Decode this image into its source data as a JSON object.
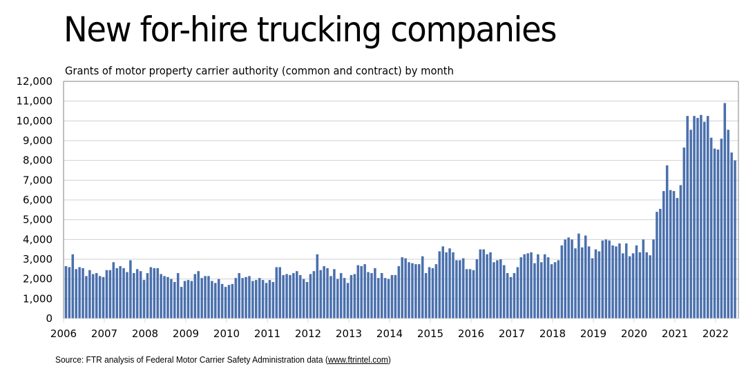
{
  "title": "New for-hire trucking companies",
  "source": {
    "prefix": "Source: FTR analysis of Federal Motor Carrier Safety Administration data (",
    "link": "www.ftrintel.com",
    "suffix": ")"
  },
  "colors": {
    "bar": "#4a70ad",
    "grid": "#d0d0d0",
    "axis": "#808080"
  },
  "chart_data": {
    "type": "bar",
    "title": "New for-hire trucking companies",
    "subtitle": "Grants of motor property carrier authority (common and contract) by month",
    "xlabel": "",
    "ylabel": "",
    "ylim": [
      0,
      12000
    ],
    "yticks": [
      0,
      1000,
      2000,
      3000,
      4000,
      5000,
      6000,
      7000,
      8000,
      9000,
      10000,
      11000,
      12000
    ],
    "ytick_labels": [
      "0",
      "1,000",
      "2,000",
      "3,000",
      "4,000",
      "5,000",
      "6,000",
      "7,000",
      "8,000",
      "9,000",
      "10,000",
      "11,000",
      "12,000"
    ],
    "xtick_labels": [
      "2006",
      "2007",
      "2008",
      "2009",
      "2010",
      "2011",
      "2012",
      "2013",
      "2014",
      "2015",
      "2016",
      "2017",
      "2018",
      "2019",
      "2020",
      "2021",
      "2022"
    ],
    "grid": true,
    "legend": "none",
    "start": "2006-01",
    "frequency": "monthly",
    "series": [
      {
        "name": "Grants of authority",
        "values": [
          2650,
          2600,
          3250,
          2500,
          2600,
          2550,
          2150,
          2450,
          2250,
          2300,
          2150,
          2100,
          2450,
          2450,
          2850,
          2550,
          2650,
          2550,
          2350,
          2950,
          2300,
          2500,
          2400,
          1950,
          2300,
          2600,
          2550,
          2550,
          2250,
          2150,
          2100,
          2000,
          1850,
          2300,
          1600,
          1900,
          1950,
          1900,
          2250,
          2400,
          2050,
          2150,
          2150,
          1900,
          1800,
          2000,
          1750,
          1600,
          1700,
          1750,
          2050,
          2300,
          2050,
          2100,
          2150,
          1900,
          1950,
          2050,
          1950,
          1800,
          1950,
          1850,
          2600,
          2600,
          2200,
          2250,
          2200,
          2300,
          2400,
          2200,
          2000,
          1850,
          2250,
          2400,
          3250,
          2450,
          2650,
          2550,
          2150,
          2500,
          2000,
          2300,
          2050,
          1800,
          2200,
          2250,
          2700,
          2650,
          2750,
          2350,
          2300,
          2550,
          2050,
          2300,
          2050,
          2000,
          2200,
          2200,
          2650,
          3100,
          3050,
          2850,
          2800,
          2750,
          2750,
          3150,
          2300,
          2600,
          2550,
          2750,
          3400,
          3650,
          3350,
          3550,
          3350,
          2950,
          2950,
          3050,
          2500,
          2500,
          2450,
          3000,
          3500,
          3500,
          3250,
          3350,
          2850,
          2950,
          3000,
          2700,
          2300,
          2100,
          2300,
          2600,
          3100,
          3250,
          3300,
          3350,
          2800,
          3250,
          2850,
          3250,
          3100,
          2750,
          2850,
          2950,
          3700,
          4000,
          4100,
          4000,
          3550,
          4300,
          3600,
          4200,
          3650,
          3050,
          3500,
          3400,
          3950,
          4000,
          3950,
          3700,
          3650,
          3800,
          3300,
          3800,
          3150,
          3300,
          3700,
          3350,
          4000,
          3350,
          3200,
          4000,
          5400,
          5550,
          6450,
          7750,
          6500,
          6450,
          6100,
          6750,
          8650,
          10250,
          9550,
          10250,
          10150,
          10300,
          9950,
          10250,
          9150,
          8600,
          8550,
          9100,
          10900,
          9550,
          8400,
          8000
        ]
      }
    ]
  }
}
